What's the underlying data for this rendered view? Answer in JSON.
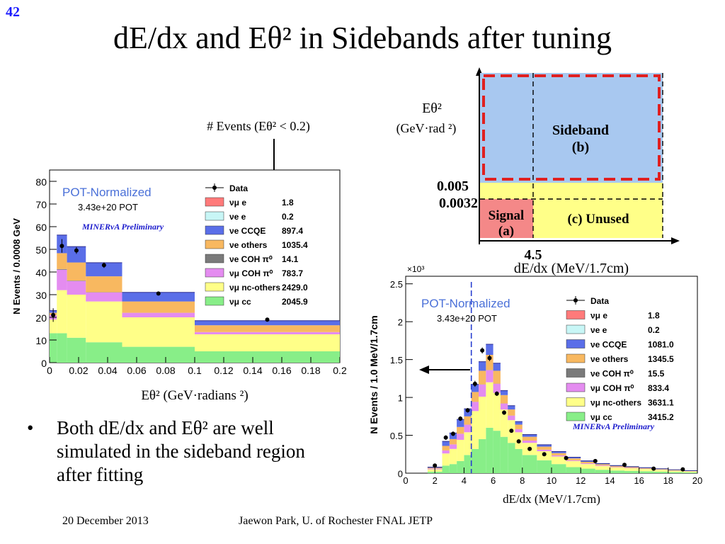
{
  "slide": {
    "number": "42",
    "title": "dE/dx and Eθ² in Sidebands after tuning",
    "bullet": "Both dE/dx and Eθ² are well simulated in the sideband region after fitting",
    "footer_date": "20 December 2013",
    "footer_author": "Jaewon Park, U. of Rochester  FNAL JETP"
  },
  "annotations": {
    "events_label": "# Events (Eθ² < 0.2)"
  },
  "colors": {
    "nue_cc": "#ff7a7a",
    "nuebar": "#c8f6f6",
    "ccqe": "#5a6ee8",
    "others": "#f8b860",
    "coh_e": "#7a7a7a",
    "coh_mu": "#e48cf0",
    "nc_others": "#ffff88",
    "numu_cc": "#88ee88",
    "pot": "#4a70d8",
    "minerva": "#1a1acc",
    "sideband_fill": "#a8c8f0",
    "band_fill": "#ffff88",
    "signal_fill": "#f48888",
    "sideband_border": "#e02020"
  },
  "chart_data": [
    {
      "type": "bar",
      "subtype": "stacked-histogram",
      "xlabel": "Eθ² (GeV·radians ²)",
      "ylabel": "N Events / 0.0008 GeV",
      "xlim": [
        0,
        0.2
      ],
      "ylim": [
        0,
        85
      ],
      "xticks": [
        "0",
        "0.02",
        "0.04",
        "0.06",
        "0.08",
        "0.1",
        "0.12",
        "0.14",
        "0.16",
        "0.18",
        "0.2"
      ],
      "yticks": [
        "0",
        "10",
        "20",
        "30",
        "40",
        "50",
        "60",
        "70",
        "80"
      ],
      "pot_label": "POT-Normalized",
      "pot_value": "3.43e+20 POT",
      "preliminary": "MINERvA Preliminary",
      "bin_edges": [
        0,
        0.005,
        0.012,
        0.025,
        0.05,
        0.1,
        0.2
      ],
      "series": [
        {
          "name": "νμ cc",
          "values": [
            13,
            13,
            11,
            9,
            7,
            5
          ]
        },
        {
          "name": "νμ nc-others",
          "values": [
            6,
            19,
            19,
            18,
            13,
            7.5
          ]
        },
        {
          "name": "νμ COH π⁰",
          "values": [
            2,
            9,
            6,
            4,
            2,
            1
          ]
        },
        {
          "name": "νe COH π⁰",
          "values": [
            0,
            0.3,
            0.2,
            0.1,
            0,
            0
          ]
        },
        {
          "name": "νe others",
          "values": [
            1,
            7,
            8,
            7,
            5,
            3
          ]
        },
        {
          "name": "νe CCQE",
          "values": [
            1,
            8,
            7,
            6,
            4,
            2
          ]
        },
        {
          "name": "ν̄e e",
          "values": [
            0,
            0,
            0,
            0,
            0,
            0
          ]
        },
        {
          "name": "νe e",
          "values": [
            0,
            0,
            0,
            0,
            0,
            0
          ]
        }
      ],
      "data_points": {
        "x": [
          0.0025,
          0.0085,
          0.0185,
          0.0375,
          0.075,
          0.15
        ],
        "y": [
          21,
          51.5,
          49.5,
          43,
          30.5,
          19
        ],
        "yerr": [
          3,
          3,
          1.5,
          1.2,
          0.8,
          0.5
        ]
      },
      "legend": [
        {
          "label": "Data",
          "value": ""
        },
        {
          "label": "νμ e",
          "value": "1.8"
        },
        {
          "label": "νe e",
          "value": "0.2"
        },
        {
          "label": "νe CCQE",
          "value": "897.4"
        },
        {
          "label": "νe others",
          "value": "1035.4"
        },
        {
          "label": "νe COH π⁰",
          "value": "14.1"
        },
        {
          "label": "νμ COH π⁰",
          "value": "783.7"
        },
        {
          "label": "νμ nc-others",
          "value": "2429.0"
        },
        {
          "label": "νμ cc",
          "value": "2045.9"
        }
      ]
    },
    {
      "type": "bar",
      "subtype": "stacked-histogram",
      "xlabel": "dE/dx (MeV/1.7cm)",
      "ylabel": "N Events / 1.0 MeV/1.7cm",
      "multiplier": "×10³",
      "xlim": [
        0,
        20
      ],
      "ylim": [
        0,
        2.6
      ],
      "xticks": [
        "0",
        "2",
        "4",
        "6",
        "8",
        "10",
        "12",
        "14",
        "16",
        "18",
        "20"
      ],
      "yticks": [
        "0",
        "0.5",
        "1",
        "1.5",
        "2",
        "2.5"
      ],
      "pot_label": "POT-Normalized",
      "pot_value": "3.43e+20 POT",
      "preliminary": "MINERvA Preliminary",
      "cut_line": 4.5,
      "bin_edges": [
        1.5,
        2.5,
        3,
        3.5,
        4,
        4.5,
        5,
        5.5,
        6,
        6.5,
        7,
        7.5,
        8,
        9,
        10,
        11,
        12,
        13,
        14,
        15,
        16,
        17,
        18,
        19,
        20
      ],
      "series": [
        {
          "name": "νμ cc",
          "values": [
            0.02,
            0.1,
            0.12,
            0.16,
            0.24,
            0.32,
            0.45,
            0.6,
            0.56,
            0.48,
            0.4,
            0.32,
            0.24,
            0.17,
            0.12,
            0.08,
            0.06,
            0.045,
            0.035,
            0.03,
            0.025,
            0.02,
            0.015,
            0.01
          ]
        },
        {
          "name": "νμ nc-others",
          "values": [
            0.03,
            0.16,
            0.2,
            0.28,
            0.3,
            0.5,
            0.56,
            0.6,
            0.5,
            0.36,
            0.3,
            0.22,
            0.16,
            0.12,
            0.1,
            0.08,
            0.06,
            0.05,
            0.04,
            0.035,
            0.03,
            0.025,
            0.02,
            0.015
          ]
        },
        {
          "name": "νμ COH π⁰",
          "values": [
            0.01,
            0.04,
            0.06,
            0.08,
            0.1,
            0.12,
            0.16,
            0.16,
            0.12,
            0.08,
            0.06,
            0.04,
            0.03,
            0.02,
            0.015,
            0.01,
            0.01,
            0.008,
            0.006,
            0.005,
            0.004,
            0.003,
            0.002,
            0.002
          ]
        },
        {
          "name": "νe COH π⁰",
          "values": [
            0,
            0,
            0,
            0,
            0,
            0.002,
            0.002,
            0.002,
            0.002,
            0.001,
            0.001,
            0.001,
            0,
            0,
            0,
            0,
            0,
            0,
            0,
            0,
            0,
            0,
            0,
            0
          ]
        },
        {
          "name": "νe others",
          "values": [
            0.01,
            0.06,
            0.07,
            0.09,
            0.11,
            0.13,
            0.18,
            0.2,
            0.17,
            0.11,
            0.08,
            0.06,
            0.05,
            0.04,
            0.03,
            0.025,
            0.02,
            0.015,
            0.012,
            0.01,
            0.008,
            0.006,
            0.005,
            0.004
          ]
        },
        {
          "name": "νe CCQE",
          "values": [
            0.01,
            0.06,
            0.08,
            0.1,
            0.1,
            0.1,
            0.12,
            0.14,
            0.1,
            0.06,
            0.05,
            0.04,
            0.03,
            0.025,
            0.02,
            0.015,
            0.012,
            0.01,
            0.008,
            0.006,
            0.005,
            0.004,
            0.003,
            0.002
          ]
        },
        {
          "name": "ν̄e e",
          "values": [
            0,
            0,
            0,
            0,
            0,
            0,
            0,
            0,
            0,
            0,
            0,
            0,
            0,
            0,
            0,
            0,
            0,
            0,
            0,
            0,
            0,
            0,
            0,
            0
          ]
        },
        {
          "name": "νe e",
          "values": [
            0,
            0,
            0,
            0,
            0,
            0,
            0,
            0,
            0,
            0,
            0,
            0,
            0,
            0,
            0,
            0,
            0,
            0,
            0,
            0,
            0,
            0,
            0,
            0
          ]
        }
      ],
      "data_points": {
        "x": [
          2,
          2.75,
          3.25,
          3.75,
          4.25,
          4.75,
          5.25,
          5.75,
          6.25,
          6.75,
          7.25,
          7.75,
          8.5,
          9.5,
          11,
          13,
          15,
          17,
          19
        ],
        "y": [
          0.1,
          0.47,
          0.52,
          0.72,
          0.83,
          1.18,
          1.62,
          1.52,
          1.05,
          0.8,
          0.56,
          0.42,
          0.32,
          0.25,
          0.2,
          0.16,
          0.11,
          0.06,
          0.05
        ],
        "yerr": [
          0.02,
          0.03,
          0.03,
          0.03,
          0.03,
          0.04,
          0.04,
          0.04,
          0.03,
          0.03,
          0.02,
          0.02,
          0.02,
          0.01,
          0.01,
          0.01,
          0.01,
          0.01,
          0.01
        ]
      },
      "legend": [
        {
          "label": "Data",
          "value": ""
        },
        {
          "label": "νμ e",
          "value": "1.8"
        },
        {
          "label": "νe e",
          "value": "0.2"
        },
        {
          "label": "νe CCQE",
          "value": "1081.0"
        },
        {
          "label": "νe others",
          "value": "1345.5"
        },
        {
          "label": "νe COH π⁰",
          "value": "15.5"
        },
        {
          "label": "νμ COH π⁰",
          "value": "833.4"
        },
        {
          "label": "νμ nc-others",
          "value": "3631.1"
        },
        {
          "label": "νμ cc",
          "value": "3415.2"
        }
      ]
    }
  ],
  "region_diagram": {
    "y_axis_label": "Eθ²",
    "y_axis_units": "(GeV·rad ²)",
    "x_axis_label": "dE/dx (MeV/1.7cm)",
    "y_cut_high": "0.005",
    "y_cut_low": "0.0032",
    "x_cut": "4.5",
    "sideband_label": "Sideband",
    "sideband_tag": "(b)",
    "signal_label": "Signal",
    "signal_tag": "(a)",
    "unused_label": "(c) Unused"
  }
}
